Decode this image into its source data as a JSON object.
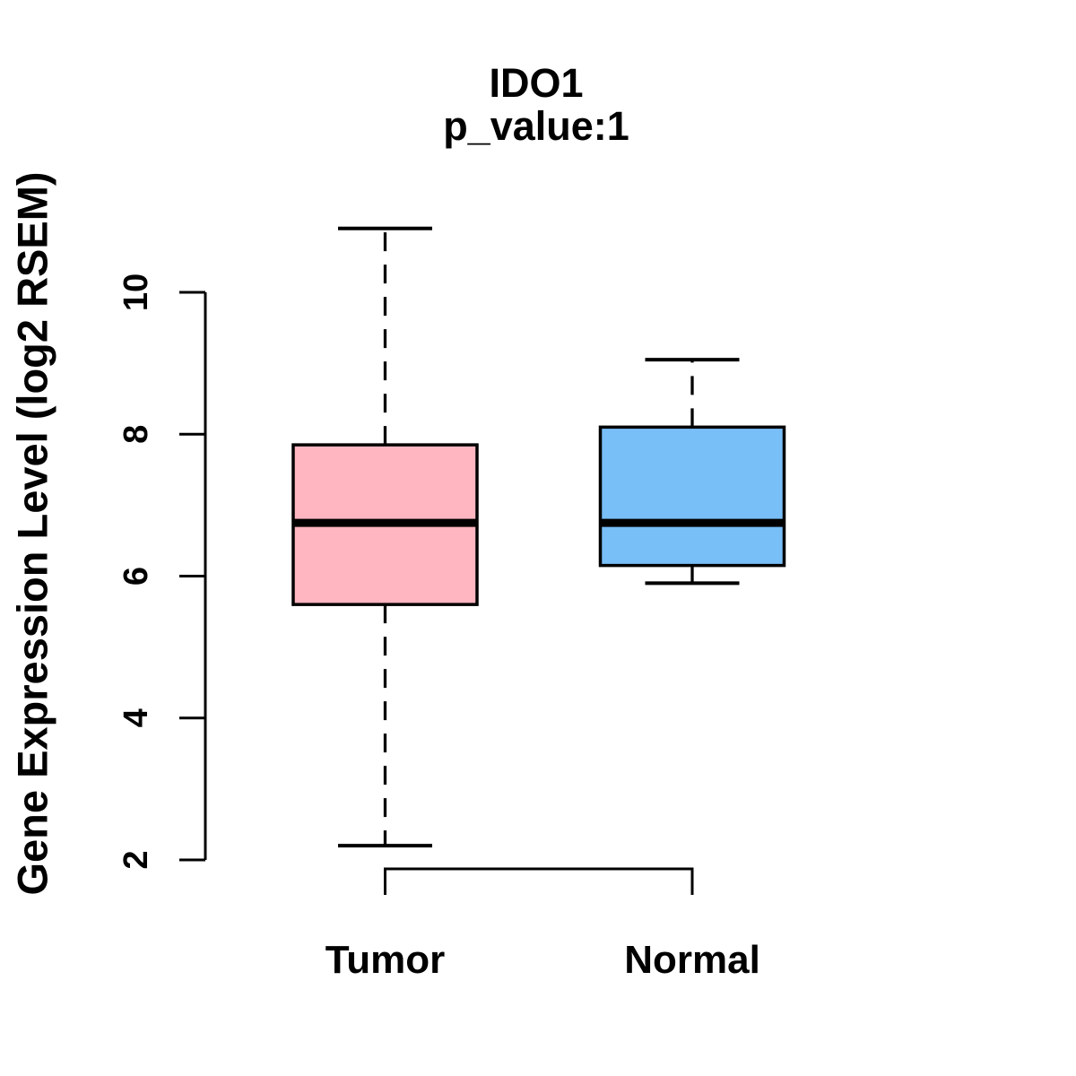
{
  "chart_data": {
    "type": "boxplot",
    "title": "IDO1",
    "subtitle": "p_value:1",
    "ylabel": "Gene Expression Level (log2 RSEM)",
    "xlabel": "",
    "ylim": [
      2,
      10
    ],
    "yticks": [
      2,
      4,
      6,
      8,
      10
    ],
    "grid": false,
    "legend": "none",
    "categories": [
      "Tumor",
      "Normal"
    ],
    "series": [
      {
        "name": "Tumor",
        "box_color": "#FFB6C1",
        "whisker_low": 2.2,
        "q1": 5.6,
        "median": 6.75,
        "q3": 7.85,
        "whisker_high": 10.9
      },
      {
        "name": "Normal",
        "box_color": "#78BEF7",
        "whisker_low": 5.9,
        "q1": 6.15,
        "median": 6.75,
        "q3": 8.1,
        "whisker_high": 9.05
      }
    ],
    "colors": {
      "box_border": "#000000",
      "median": "#000000",
      "axis": "#000000",
      "whisker": "#000000"
    }
  }
}
